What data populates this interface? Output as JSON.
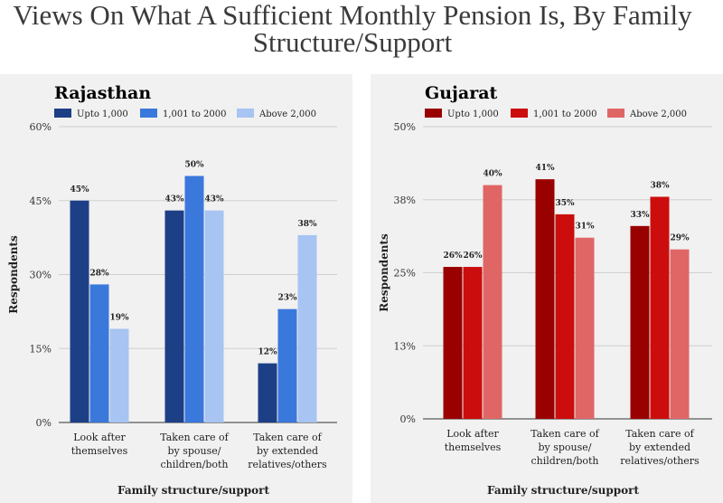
{
  "page": {
    "title_line1": "Views On What A Sufficient Monthly Pension Is, By Family",
    "title_line2": "Structure/Support"
  },
  "chart_data": [
    {
      "type": "bar",
      "title": "Rajasthan",
      "xlabel": "Family structure/support",
      "ylabel": "Respondents",
      "ylim": [
        0,
        60
      ],
      "yticks": [
        "0%",
        "15%",
        "30%",
        "45%",
        "60%"
      ],
      "ytick_values": [
        0,
        15,
        30,
        45,
        60
      ],
      "categories": [
        [
          "Look after",
          "themselves"
        ],
        [
          "Taken care of",
          "by spouse/",
          "children/both"
        ],
        [
          "Taken care of",
          "by extended",
          "relatives/others"
        ]
      ],
      "series": [
        {
          "name": "Upto 1,000",
          "color": "#1c3f86",
          "values": [
            45,
            43,
            12
          ],
          "labels": [
            "45%",
            "43%",
            "12%"
          ]
        },
        {
          "name": "1,001 to 2000",
          "color": "#3a78dc",
          "values": [
            28,
            50,
            23
          ],
          "labels": [
            "28%",
            "50%",
            "23%"
          ]
        },
        {
          "name": "Above 2,000",
          "color": "#a7c4f2",
          "values": [
            19,
            43,
            38
          ],
          "labels": [
            "19%",
            "43%",
            "38%"
          ]
        }
      ],
      "grid": true,
      "legend_position": "top"
    },
    {
      "type": "bar",
      "title": "Gujarat",
      "xlabel": "Family structure/support",
      "ylabel": "Respondents",
      "ylim": [
        0,
        50
      ],
      "yticks": [
        "0%",
        "13%",
        "25%",
        "38%",
        "50%"
      ],
      "ytick_values": [
        0,
        12.5,
        25,
        37.5,
        50
      ],
      "categories": [
        [
          "Look after",
          "themselves"
        ],
        [
          "Taken care of",
          "by spouse/",
          "children/both"
        ],
        [
          "Taken care of",
          "by extended",
          "relatives/others"
        ]
      ],
      "series": [
        {
          "name": "Upto 1,000",
          "color": "#990000",
          "values": [
            26,
            41,
            33
          ],
          "labels": [
            "26%",
            "41%",
            "33%"
          ]
        },
        {
          "name": "1,001 to 2000",
          "color": "#cc0d0d",
          "values": [
            26,
            35,
            38
          ],
          "labels": [
            "26%",
            "35%",
            "38%"
          ]
        },
        {
          "name": "Above 2,000",
          "color": "#e06666",
          "values": [
            40,
            31,
            29
          ],
          "labels": [
            "40%",
            "31%",
            "29%"
          ]
        }
      ],
      "grid": true,
      "legend_position": "top"
    }
  ]
}
